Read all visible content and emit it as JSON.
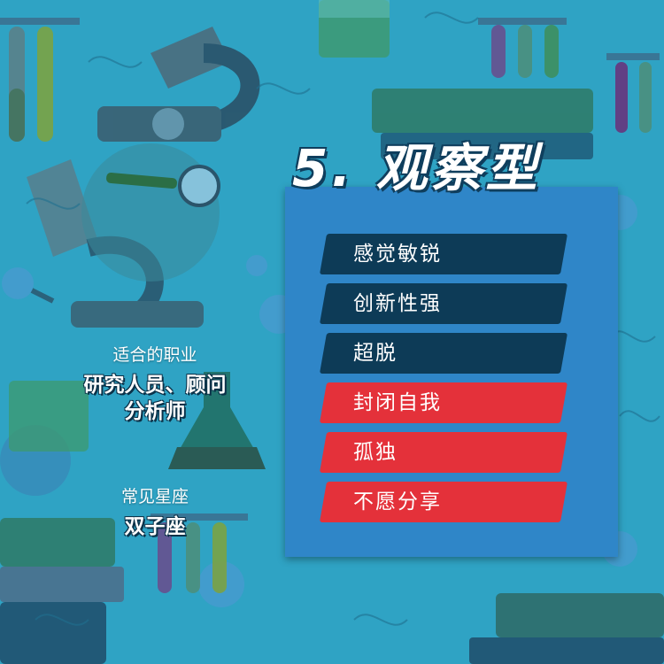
{
  "title": "5. 观察型",
  "career_label": "适合的职业",
  "career_line1": "研究人员、顾问",
  "career_line2": "分析师",
  "zodiac_label": "常见星座",
  "zodiac_value": "双子座",
  "traits": [
    {
      "label": "感觉敏锐",
      "kind": "positive"
    },
    {
      "label": "创新性强",
      "kind": "positive"
    },
    {
      "label": "超脱",
      "kind": "positive"
    },
    {
      "label": "封闭自我",
      "kind": "negative"
    },
    {
      "label": "孤独",
      "kind": "negative"
    },
    {
      "label": "不愿分享",
      "kind": "negative"
    }
  ],
  "colors": {
    "background": "#2fa3c4",
    "panel": "#2f86c8",
    "positive": "#0d3b57",
    "negative": "#e4313a"
  }
}
